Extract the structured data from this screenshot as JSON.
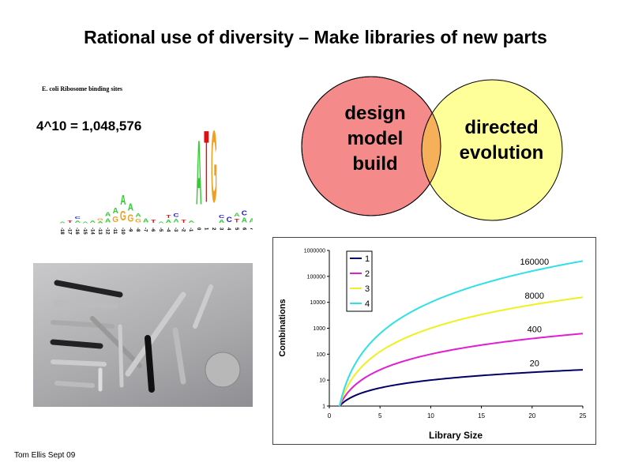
{
  "slide": {
    "title": "Rational use of diversity – Make libraries of new parts",
    "footer": "Tom Ellis Sept 09"
  },
  "sequence_logo": {
    "title": "E. coli Ribosome binding sites",
    "formula": "4^10 = 1,048,576",
    "positions": [
      "-18",
      "-17",
      "-16",
      "-15",
      "-14",
      "-13",
      "-12",
      "-11",
      "-10",
      "-9",
      "-8",
      "-7",
      "-6",
      "-5",
      "-4",
      "-3",
      "-2",
      "-1",
      "0",
      "1",
      "2",
      "3",
      "4",
      "5",
      "6",
      "7",
      "8"
    ],
    "colors": {
      "A": "#33cc33",
      "C": "#1a1ad6",
      "G": "#f0a020",
      "T": "#e01010"
    }
  },
  "venn": {
    "left_lines": [
      "design",
      "model",
      "build"
    ],
    "right_lines": [
      "directed",
      "evolution"
    ],
    "colors": {
      "left": "#f48a8a",
      "right": "#ffff99",
      "overlap": "#f6b05a"
    }
  },
  "photo": {
    "subject": "screws"
  },
  "chart_data": {
    "type": "line",
    "xlabel": "Library Size",
    "ylabel": "Combinations",
    "xlim": [
      0,
      25
    ],
    "ylim": [
      1,
      1000000
    ],
    "yscale": "log",
    "grid": false,
    "legend_placement": "top-left",
    "x_ticks": [
      "0",
      "5",
      "10",
      "15",
      "20",
      "25"
    ],
    "y_ticks": [
      "1",
      "10",
      "100",
      "1000",
      "10000",
      "100000",
      "1000000"
    ],
    "x": [
      1,
      2,
      3,
      4,
      5,
      6,
      7,
      8,
      9,
      10,
      11,
      12,
      13,
      14,
      15,
      16,
      17,
      18,
      19,
      20,
      21,
      22,
      23,
      24,
      25
    ],
    "series": [
      {
        "name": "1",
        "exponent": 1,
        "color": "#000066"
      },
      {
        "name": "2",
        "exponent": 2,
        "color": "#e020d0"
      },
      {
        "name": "3",
        "exponent": 3,
        "color": "#f0f020"
      },
      {
        "name": "4",
        "exponent": 4,
        "color": "#30e0e8"
      }
    ],
    "annotations": [
      {
        "text": "20",
        "x": 20,
        "y": 20
      },
      {
        "text": "400",
        "x": 20,
        "y": 400
      },
      {
        "text": "8000",
        "x": 20,
        "y": 8000
      },
      {
        "text": "160000",
        "x": 20,
        "y": 160000
      }
    ]
  }
}
